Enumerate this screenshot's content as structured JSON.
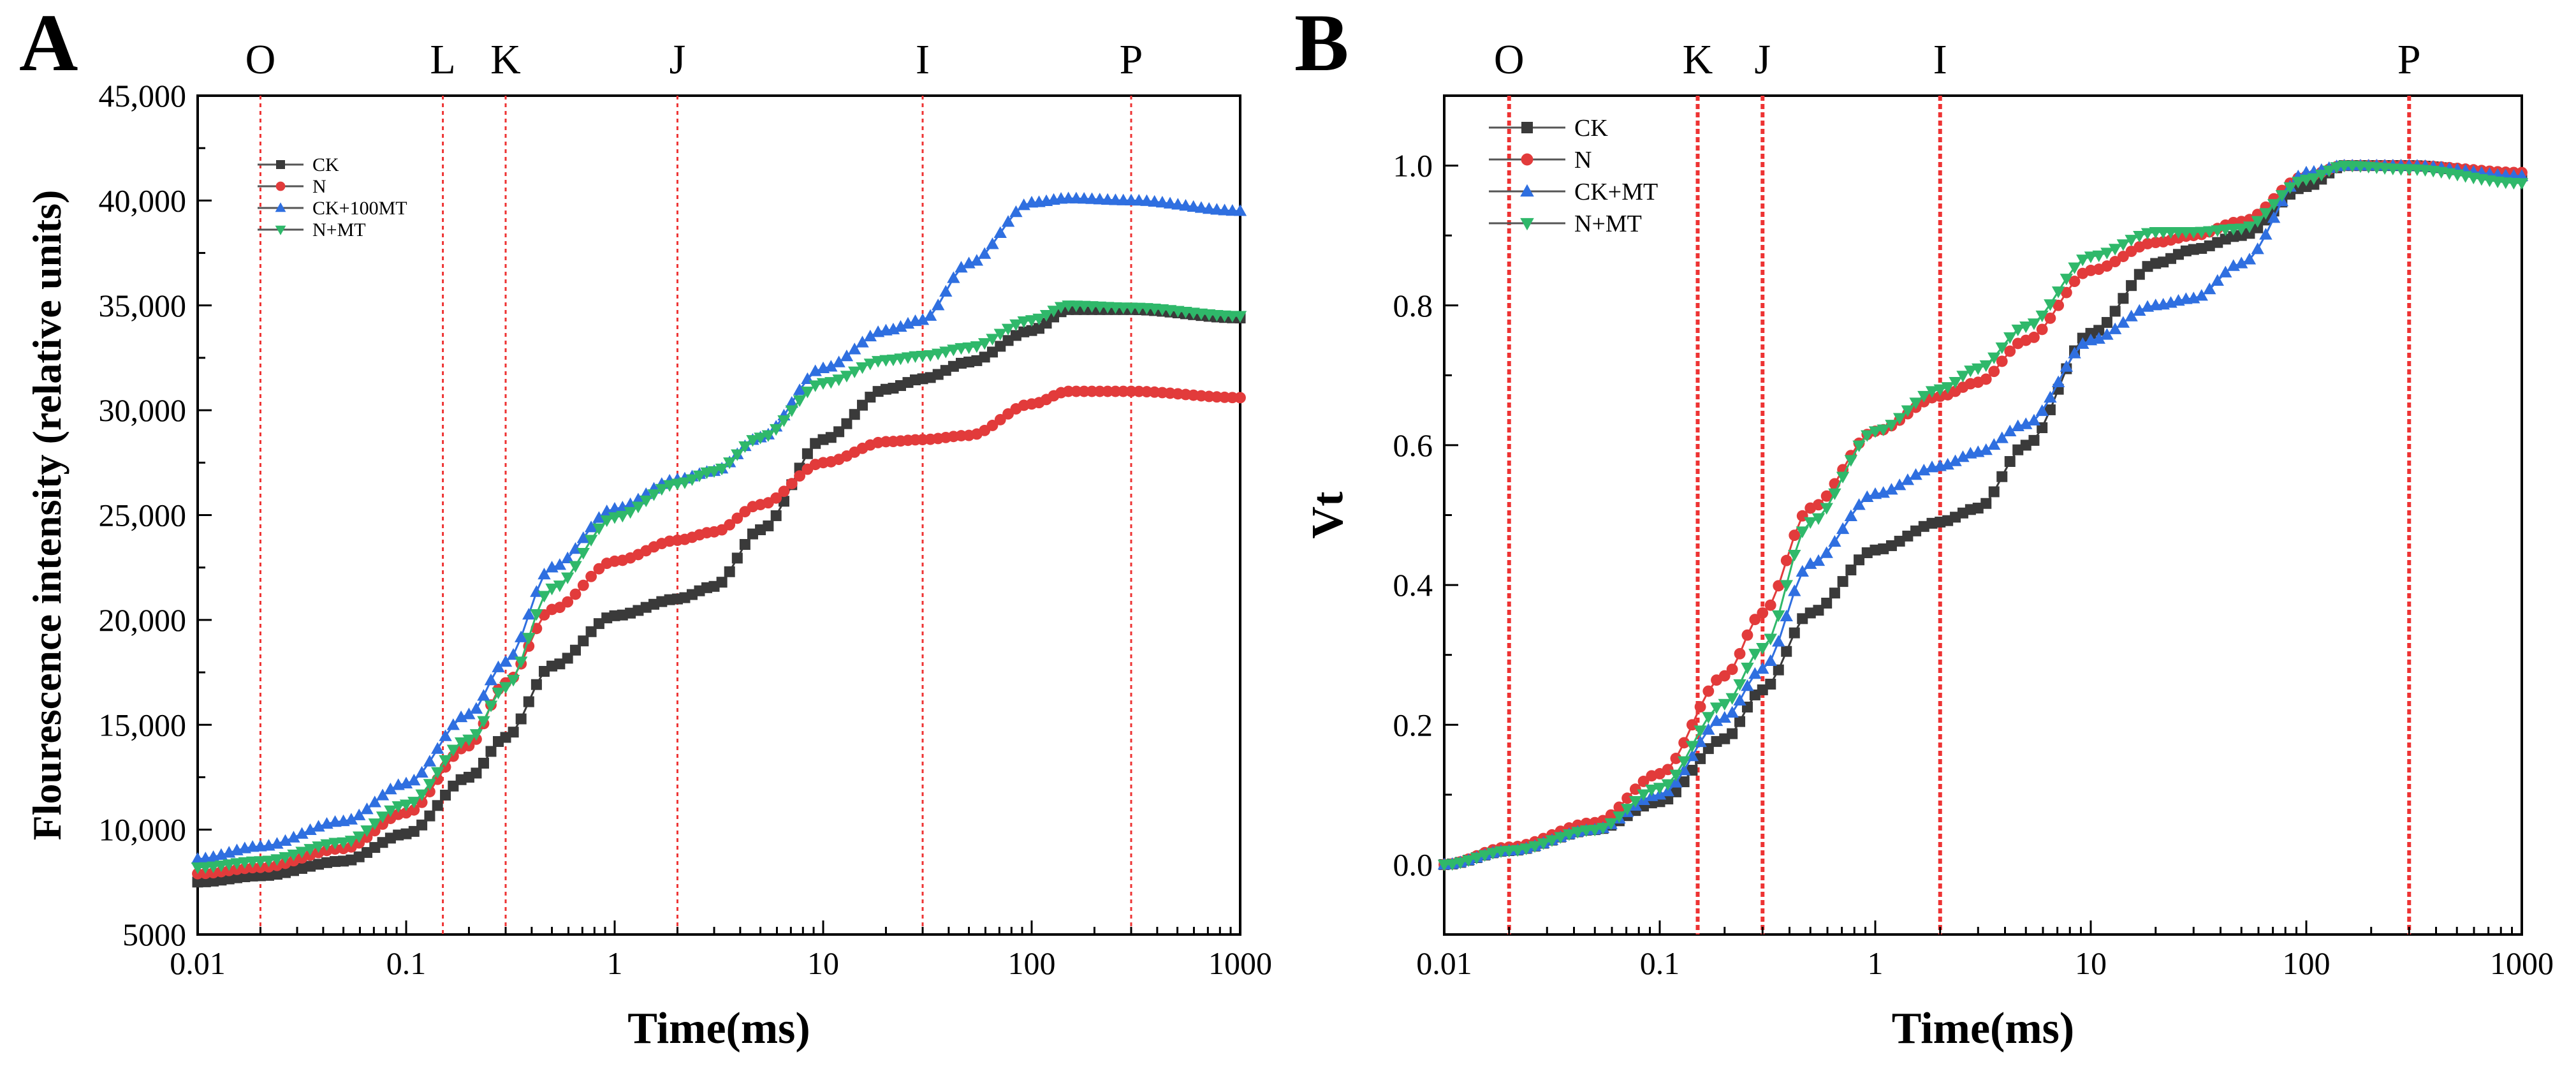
{
  "chart_data": [
    {
      "panel": "A",
      "type": "line",
      "x_scale": "log",
      "xlim": [
        0.01,
        1000
      ],
      "ylim": [
        5000,
        45000
      ],
      "xlabel": "Time(ms)",
      "ylabel": "Flourescence intensity (relative units)",
      "xticks": [
        0.01,
        0.1,
        1,
        10,
        100,
        1000
      ],
      "xtick_labels": [
        "0.01",
        "0.1",
        "1",
        "10",
        "100",
        "1000"
      ],
      "yticks": [
        5000,
        10000,
        15000,
        20000,
        25000,
        30000,
        35000,
        40000,
        45000
      ],
      "ytick_labels": [
        "5000",
        "10,000",
        "15,000",
        "20,000",
        "25,000",
        "30,000",
        "35,000",
        "40,000",
        "45,000"
      ],
      "phase_markers": [
        {
          "label": "O",
          "x": 0.02
        },
        {
          "label": "L",
          "x": 0.15
        },
        {
          "label": "K",
          "x": 0.3
        },
        {
          "label": "J",
          "x": 2
        },
        {
          "label": "I",
          "x": 30
        },
        {
          "label": "P",
          "x": 300
        }
      ],
      "legend_position": "top-left",
      "series": [
        {
          "name": "CK",
          "color": "#3a3a3a",
          "marker": "square",
          "points": [
            [
              0.01,
              7500
            ],
            [
              0.02,
              7800
            ],
            [
              0.05,
              8500
            ],
            [
              0.1,
              9800
            ],
            [
              0.2,
              12500
            ],
            [
              0.3,
              14400
            ],
            [
              0.5,
              17800
            ],
            [
              1,
              20200
            ],
            [
              2,
              21000
            ],
            [
              3,
              21600
            ],
            [
              5,
              24300
            ],
            [
              10,
              28600
            ],
            [
              20,
              31000
            ],
            [
              30,
              31500
            ],
            [
              50,
              32300
            ],
            [
              100,
              33800
            ],
            [
              150,
              34800
            ],
            [
              300,
              34800
            ],
            [
              1000,
              34400
            ]
          ]
        },
        {
          "name": "N",
          "color": "#e23b3b",
          "marker": "circle",
          "points": [
            [
              0.01,
              7900
            ],
            [
              0.02,
              8200
            ],
            [
              0.05,
              9100
            ],
            [
              0.1,
              10800
            ],
            [
              0.2,
              14000
            ],
            [
              0.3,
              17000
            ],
            [
              0.5,
              20500
            ],
            [
              1,
              22800
            ],
            [
              2,
              23800
            ],
            [
              3,
              24200
            ],
            [
              5,
              25500
            ],
            [
              10,
              27500
            ],
            [
              20,
              28500
            ],
            [
              30,
              28600
            ],
            [
              50,
              28800
            ],
            [
              100,
              30300
            ],
            [
              150,
              30900
            ],
            [
              300,
              30900
            ],
            [
              1000,
              30600
            ]
          ]
        },
        {
          "name": "CK+100MT",
          "color": "#2f6fe0",
          "marker": "triangle-up",
          "points": [
            [
              0.01,
              8600
            ],
            [
              0.02,
              9200
            ],
            [
              0.05,
              10400
            ],
            [
              0.1,
              12200
            ],
            [
              0.2,
              15500
            ],
            [
              0.3,
              18000
            ],
            [
              0.5,
              22500
            ],
            [
              1,
              25300
            ],
            [
              2,
              26700
            ],
            [
              3,
              27100
            ],
            [
              5,
              28700
            ],
            [
              10,
              32000
            ],
            [
              20,
              33800
            ],
            [
              30,
              34300
            ],
            [
              50,
              37000
            ],
            [
              100,
              39900
            ],
            [
              150,
              40100
            ],
            [
              300,
              40000
            ],
            [
              1000,
              39500
            ]
          ]
        },
        {
          "name": "N+MT",
          "color": "#2fb86a",
          "marker": "triangle-down",
          "points": [
            [
              0.01,
              8200
            ],
            [
              0.02,
              8500
            ],
            [
              0.05,
              9400
            ],
            [
              0.1,
              11200
            ],
            [
              0.2,
              14300
            ],
            [
              0.3,
              16800
            ],
            [
              0.5,
              21500
            ],
            [
              1,
              24900
            ],
            [
              2,
              26500
            ],
            [
              3,
              27100
            ],
            [
              5,
              28700
            ],
            [
              10,
              31300
            ],
            [
              20,
              32400
            ],
            [
              30,
              32600
            ],
            [
              50,
              33000
            ],
            [
              100,
              34300
            ],
            [
              150,
              35000
            ],
            [
              300,
              34900
            ],
            [
              1000,
              34500
            ]
          ]
        }
      ]
    },
    {
      "panel": "B",
      "type": "line",
      "x_scale": "log",
      "xlim": [
        0.01,
        1000
      ],
      "ylim": [
        -0.1,
        1.1
      ],
      "xlabel": "Time(ms)",
      "ylabel": "Vt",
      "xticks": [
        0.01,
        0.1,
        1,
        10,
        100,
        1000
      ],
      "xtick_labels": [
        "0.01",
        "0.1",
        "1",
        "10",
        "100",
        "1000"
      ],
      "yticks": [
        0.0,
        0.2,
        0.4,
        0.6,
        0.8,
        1.0
      ],
      "ytick_labels": [
        "0.0",
        "0.2",
        "0.4",
        "0.6",
        "0.8",
        "1.0"
      ],
      "phase_markers": [
        {
          "label": "O",
          "x": 0.02
        },
        {
          "label": "K",
          "x": 0.15
        },
        {
          "label": "J",
          "x": 0.3
        },
        {
          "label": "I",
          "x": 2
        },
        {
          "label": "P",
          "x": 300
        }
      ],
      "legend_position": "top-left",
      "series": [
        {
          "name": "CK",
          "color": "#3a3a3a",
          "marker": "square",
          "points": [
            [
              0.01,
              0.0
            ],
            [
              0.02,
              0.02
            ],
            [
              0.05,
              0.05
            ],
            [
              0.1,
              0.09
            ],
            [
              0.2,
              0.18
            ],
            [
              0.3,
              0.25
            ],
            [
              0.5,
              0.36
            ],
            [
              1,
              0.45
            ],
            [
              2,
              0.49
            ],
            [
              3,
              0.51
            ],
            [
              5,
              0.6
            ],
            [
              10,
              0.76
            ],
            [
              20,
              0.86
            ],
            [
              30,
              0.88
            ],
            [
              50,
              0.9
            ],
            [
              100,
              0.97
            ],
            [
              150,
              1.0
            ],
            [
              300,
              1.0
            ],
            [
              1000,
              0.985
            ]
          ]
        },
        {
          "name": "N",
          "color": "#e23b3b",
          "marker": "circle",
          "points": [
            [
              0.01,
              0.0
            ],
            [
              0.02,
              0.025
            ],
            [
              0.05,
              0.06
            ],
            [
              0.1,
              0.13
            ],
            [
              0.2,
              0.27
            ],
            [
              0.3,
              0.36
            ],
            [
              0.5,
              0.51
            ],
            [
              1,
              0.62
            ],
            [
              2,
              0.67
            ],
            [
              3,
              0.69
            ],
            [
              5,
              0.75
            ],
            [
              10,
              0.85
            ],
            [
              20,
              0.89
            ],
            [
              30,
              0.9
            ],
            [
              50,
              0.92
            ],
            [
              100,
              0.985
            ],
            [
              150,
              1.0
            ],
            [
              300,
              1.0
            ],
            [
              1000,
              0.99
            ]
          ]
        },
        {
          "name": "CK+MT",
          "color": "#2f6fe0",
          "marker": "triangle-up",
          "points": [
            [
              0.01,
              0.0
            ],
            [
              0.02,
              0.02
            ],
            [
              0.05,
              0.05
            ],
            [
              0.1,
              0.1
            ],
            [
              0.2,
              0.21
            ],
            [
              0.3,
              0.28
            ],
            [
              0.5,
              0.43
            ],
            [
              1,
              0.53
            ],
            [
              2,
              0.57
            ],
            [
              3,
              0.59
            ],
            [
              5,
              0.63
            ],
            [
              10,
              0.75
            ],
            [
              20,
              0.8
            ],
            [
              30,
              0.81
            ],
            [
              50,
              0.86
            ],
            [
              100,
              0.99
            ],
            [
              150,
              1.0
            ],
            [
              300,
              1.0
            ],
            [
              1000,
              0.985
            ]
          ]
        },
        {
          "name": "N+MT",
          "color": "#2fb86a",
          "marker": "triangle-down",
          "points": [
            [
              0.01,
              0.0
            ],
            [
              0.02,
              0.02
            ],
            [
              0.05,
              0.05
            ],
            [
              0.1,
              0.11
            ],
            [
              0.2,
              0.23
            ],
            [
              0.3,
              0.31
            ],
            [
              0.5,
              0.49
            ],
            [
              1,
              0.62
            ],
            [
              2,
              0.68
            ],
            [
              3,
              0.71
            ],
            [
              5,
              0.77
            ],
            [
              10,
              0.87
            ],
            [
              20,
              0.905
            ],
            [
              30,
              0.905
            ],
            [
              50,
              0.91
            ],
            [
              100,
              0.98
            ],
            [
              150,
              1.0
            ],
            [
              300,
              0.995
            ],
            [
              1000,
              0.975
            ]
          ]
        }
      ]
    }
  ]
}
